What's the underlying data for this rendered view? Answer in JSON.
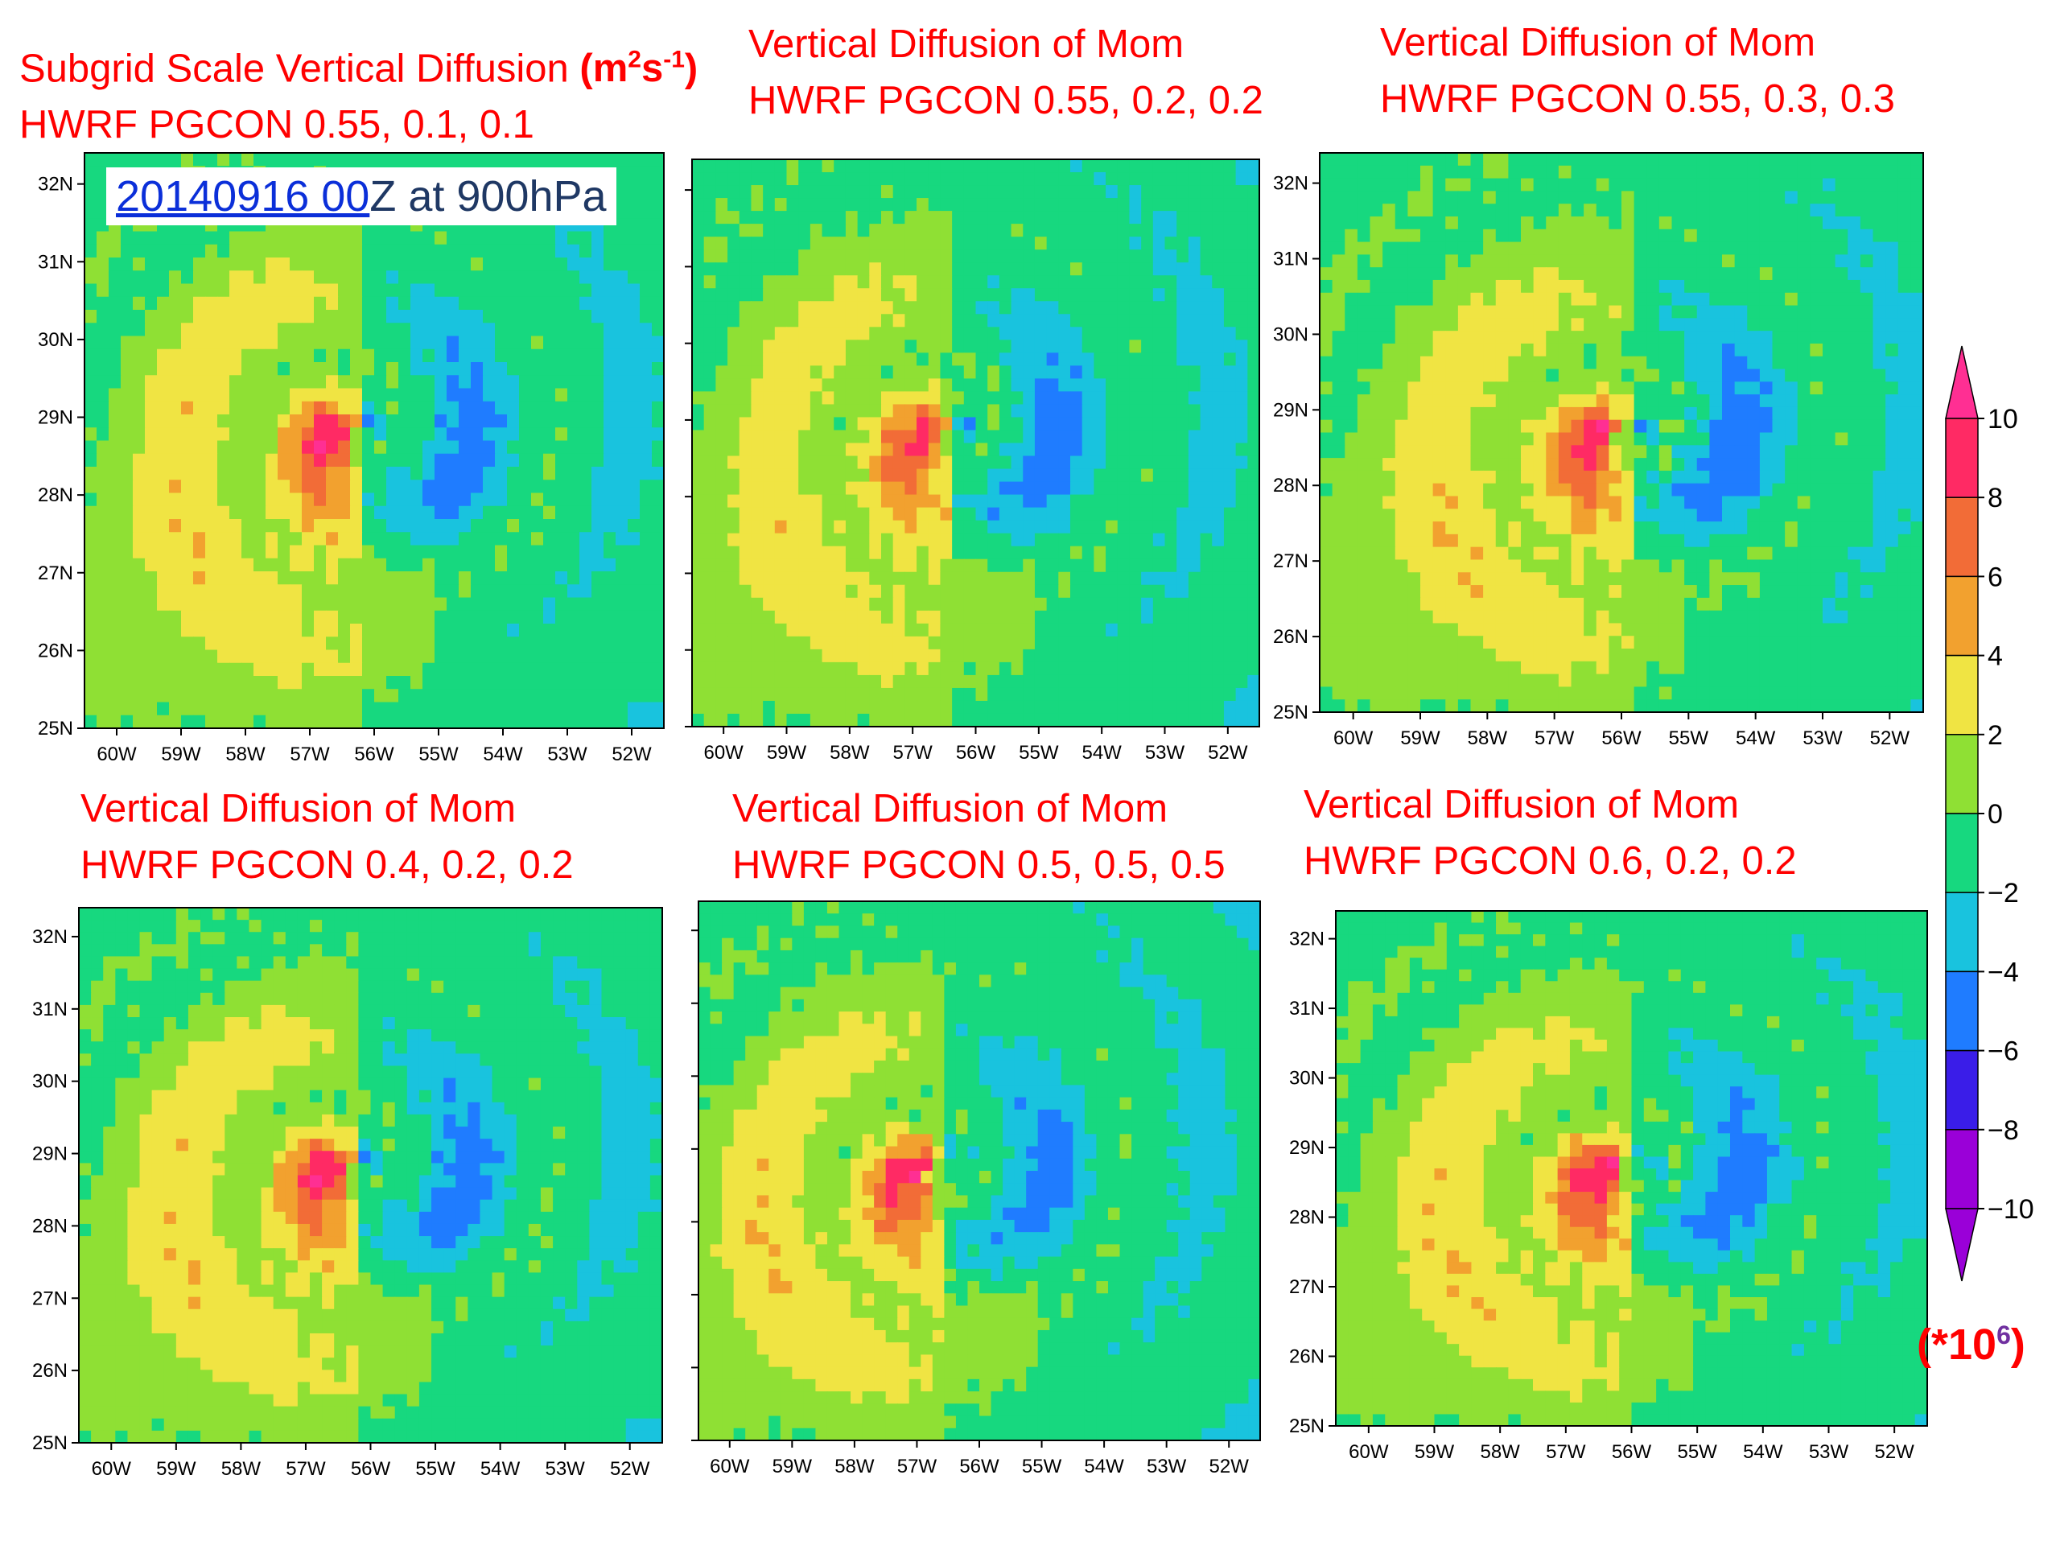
{
  "figure": {
    "timestamp_link": "20140916 00",
    "timestamp_rest": "Z at 900hPa",
    "units_base": "(m",
    "units_sup1": "2",
    "units_mid": "s",
    "units_sup2": "-1",
    "units_end": ")",
    "multiplier_open": "(*10",
    "multiplier_sup": "6",
    "multiplier_close": ")"
  },
  "colors": {
    "title": "#ff0000",
    "levels": [
      "#9a00d8",
      "#3a1de8",
      "#1f7cff",
      "#19c3de",
      "#17d87f",
      "#8fe034",
      "#f0e443",
      "#f2a12f",
      "#f26c37",
      "#ff2a64",
      "#ff2f93"
    ]
  },
  "chart_data": [
    {
      "type": "heatmap",
      "title_line1": "Subgrid Scale Vertical Diffusion",
      "title_line2": "HWRF PGCON  0.55, 0.1, 0.1",
      "x_tick_labels": [
        "60W",
        "59W",
        "58W",
        "57W",
        "56W",
        "55W",
        "54W",
        "53W",
        "52W"
      ],
      "y_tick_labels": [
        "32N",
        "31N",
        "30N",
        "29N",
        "28N",
        "27N",
        "26N",
        "25N"
      ],
      "xlim": [
        -60.5,
        -51.5
      ],
      "ylim": [
        25,
        32.4
      ],
      "center": [
        -56.2,
        28.7
      ],
      "max_positive": 10,
      "min_negative": -9
    },
    {
      "type": "heatmap",
      "title_line1": "Vertical Diffusion of Mom",
      "title_line2": "HWRF PGCON  0.55, 0.2, 0.2",
      "x_tick_labels": [
        "60W",
        "59W",
        "58W",
        "57W",
        "56W",
        "55W",
        "54W",
        "53W",
        "52W"
      ],
      "y_tick_labels": [],
      "xlim": [
        -60.5,
        -51.5
      ],
      "ylim": [
        25,
        32.4
      ],
      "center": [
        -56.4,
        28.7
      ],
      "max_positive": 9,
      "min_negative": -9
    },
    {
      "type": "heatmap",
      "title_line1": "Vertical Diffusion of Mom",
      "title_line2": "HWRF PGCON  0.55, 0.3, 0.3",
      "x_tick_labels": [
        "60W",
        "59W",
        "58W",
        "57W",
        "56W",
        "55W",
        "54W",
        "53W",
        "52W"
      ],
      "y_tick_labels": [
        "32N",
        "31N",
        "30N",
        "29N",
        "28N",
        "27N",
        "26N",
        "25N"
      ],
      "xlim": [
        -60.5,
        -51.5
      ],
      "ylim": [
        25,
        32.4
      ],
      "center": [
        -55.9,
        28.6
      ],
      "max_positive": 10,
      "min_negative": -9
    },
    {
      "type": "heatmap",
      "title_line1": "Vertical Diffusion of Mom",
      "title_line2": "HWRF PGCON  0.4, 0.2, 0.2",
      "x_tick_labels": [
        "60W",
        "59W",
        "58W",
        "57W",
        "56W",
        "55W",
        "54W",
        "53W",
        "52W"
      ],
      "y_tick_labels": [
        "32N",
        "31N",
        "30N",
        "29N",
        "28N",
        "27N",
        "26N",
        "25N"
      ],
      "xlim": [
        -60.5,
        -51.5
      ],
      "ylim": [
        25,
        32.4
      ],
      "center": [
        -56.2,
        28.7
      ],
      "max_positive": 10,
      "min_negative": -9
    },
    {
      "type": "heatmap",
      "title_line1": "Vertical Diffusion of Mom",
      "title_line2": "HWRF PGCON  0.5, 0.5, 0.5",
      "x_tick_labels": [
        "60W",
        "59W",
        "58W",
        "57W",
        "56W",
        "55W",
        "54W",
        "53W",
        "52W"
      ],
      "y_tick_labels": [],
      "xlim": [
        -60.5,
        -51.5
      ],
      "ylim": [
        25,
        32.4
      ],
      "center": [
        -56.6,
        28.6
      ],
      "max_positive": 10,
      "min_negative": -9
    },
    {
      "type": "heatmap",
      "title_line1": "Vertical Diffusion of Mom",
      "title_line2": "HWRF PGCON  0.6, 0.2, 0.2",
      "x_tick_labels": [
        "60W",
        "59W",
        "58W",
        "57W",
        "56W",
        "55W",
        "54W",
        "53W",
        "52W"
      ],
      "y_tick_labels": [
        "32N",
        "31N",
        "30N",
        "29N",
        "28N",
        "27N",
        "26N",
        "25N"
      ],
      "xlim": [
        -60.5,
        -51.5
      ],
      "ylim": [
        25,
        32.4
      ],
      "center": [
        -56.0,
        28.6
      ],
      "max_positive": 10,
      "min_negative": -9
    }
  ],
  "colorbar": {
    "labels": [
      "10",
      "8",
      "6",
      "4",
      "2",
      "0",
      "−2",
      "−4",
      "−6",
      "−8",
      "−10"
    ],
    "levels": [
      10,
      8,
      6,
      4,
      2,
      0,
      -2,
      -4,
      -6,
      -8,
      -10
    ]
  }
}
